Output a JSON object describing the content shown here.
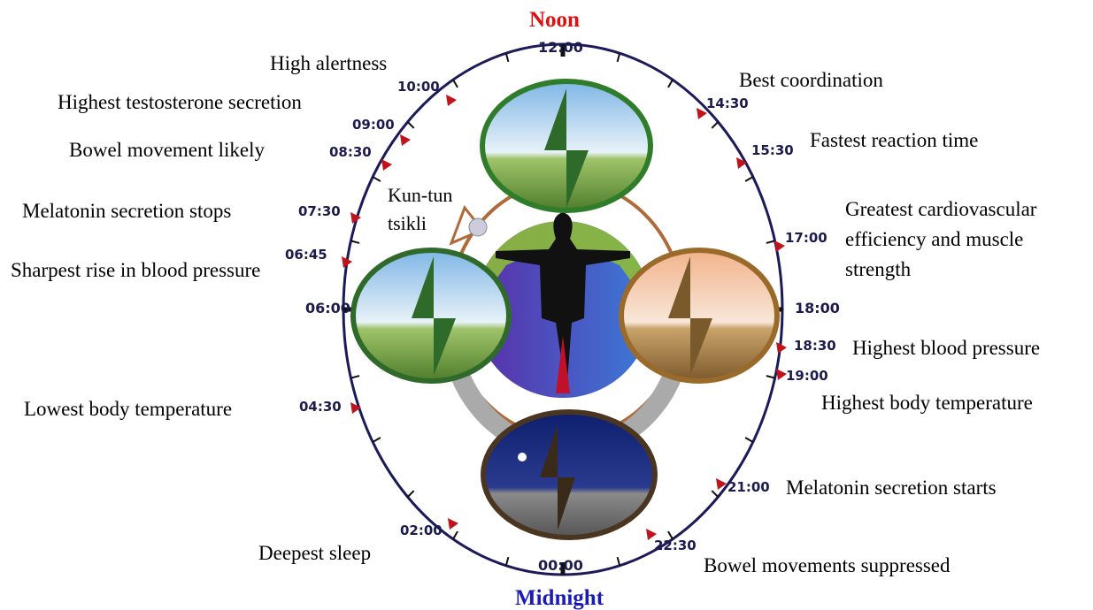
{
  "header": {
    "noon": "Noon",
    "midnight": "Midnight"
  },
  "center_label": "Kun-tun tsikli",
  "hour_marks": [
    "12:00",
    "18:00",
    "00:00",
    "06:00"
  ],
  "events": [
    {
      "time": "10:00",
      "label": "High alertness"
    },
    {
      "time": "09:00",
      "label": "Highest testosterone secretion"
    },
    {
      "time": "08:30",
      "label": "Bowel movement likely"
    },
    {
      "time": "07:30",
      "label": "Melatonin secretion stops"
    },
    {
      "time": "06:45",
      "label": "Sharpest rise in blood pressure"
    },
    {
      "time": "04:30",
      "label": "Lowest body temperature"
    },
    {
      "time": "02:00",
      "label": "Deepest sleep"
    },
    {
      "time": "14:30",
      "label": "Best coordination"
    },
    {
      "time": "15:30",
      "label": "Fastest reaction time"
    },
    {
      "time": "17:00",
      "label": "Greatest cardiovascular efficiency and muscle strength"
    },
    {
      "time": "18:30",
      "label": "Highest blood pressure"
    },
    {
      "time": "19:00",
      "label": "Highest body temperature"
    },
    {
      "time": "21:00",
      "label": "Melatonin secretion starts"
    },
    {
      "time": "22:30",
      "label": "Bowel movements suppressed"
    }
  ]
}
